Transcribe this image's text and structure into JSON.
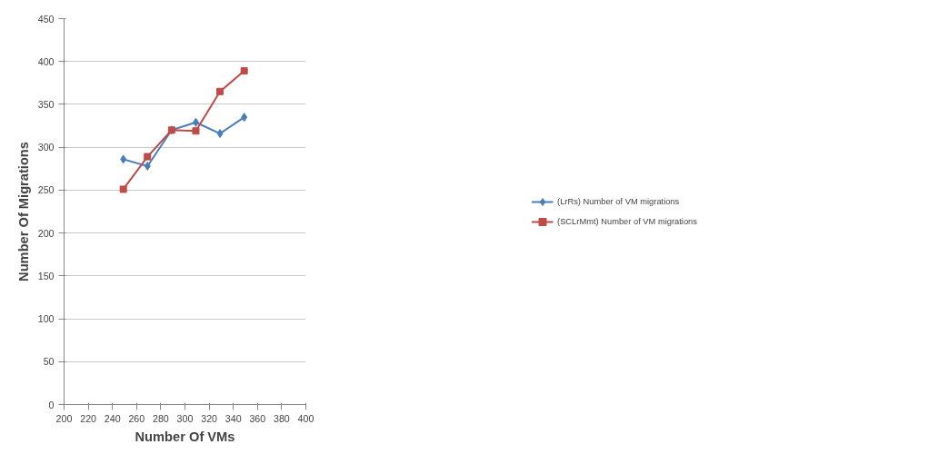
{
  "chart_data": {
    "type": "line",
    "xlabel": "Number Of VMs",
    "ylabel": "Number Of Migrations",
    "x": [
      249,
      269,
      289,
      309,
      329,
      349
    ],
    "series": [
      {
        "name": "(LrRs) Number of VM migrations",
        "color": "#4a7ebb",
        "marker": "diamond",
        "values": [
          286,
          278,
          320,
          329,
          316,
          335
        ]
      },
      {
        "name": "(SCLrMmt) Number of VM migrations",
        "color": "#be4b48",
        "marker": "square",
        "values": [
          251,
          289,
          320,
          319,
          365,
          389
        ]
      }
    ],
    "xlim": [
      200,
      400
    ],
    "xticks": [
      200,
      220,
      240,
      260,
      280,
      300,
      320,
      340,
      360,
      380,
      400
    ],
    "ylim": [
      0,
      450
    ],
    "yticks": [
      0,
      50,
      100,
      150,
      200,
      250,
      300,
      350,
      400,
      450
    ],
    "grid": "y",
    "legend": "right",
    "line_style": "solid"
  }
}
